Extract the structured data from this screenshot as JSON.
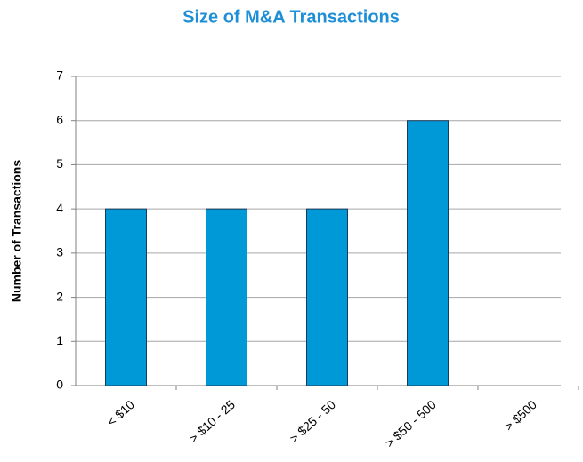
{
  "chart_data": {
    "type": "bar",
    "title": "Size of M&A Transactions",
    "y_label": "Number of Transactions",
    "categories": [
      "< $10",
      "> $10 - 25",
      "> $25 - 50",
      "> $50 - 500",
      "> $500"
    ],
    "values": [
      4,
      4,
      4,
      6,
      0
    ],
    "color": "#0099d8",
    "ylim": [
      0,
      7
    ],
    "yticks": [
      0,
      1,
      2,
      3,
      4,
      5,
      6,
      7
    ],
    "grid": true
  }
}
